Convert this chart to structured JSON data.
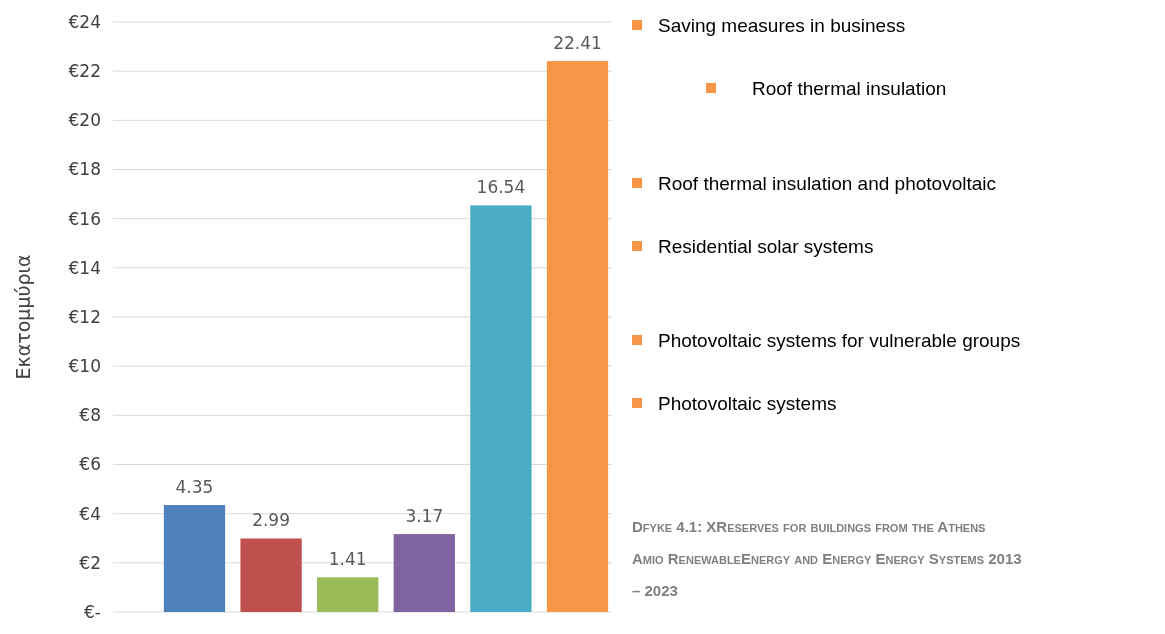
{
  "chart_data": {
    "type": "bar",
    "ylabel": "Εκατομμύρια",
    "categories": [
      null,
      null,
      null,
      null,
      null,
      null
    ],
    "values": [
      4.35,
      2.99,
      1.41,
      3.17,
      16.54,
      22.41
    ],
    "colors": [
      "#4f81bd",
      "#c0504d",
      "#9bbb59",
      "#8064a2",
      "#4bacc6",
      "#f79646"
    ],
    "ylim": [
      0,
      24
    ],
    "yticks": [
      {
        "value": 0,
        "label": "€-"
      },
      {
        "value": 2,
        "label": "€2"
      },
      {
        "value": 4,
        "label": "€4"
      },
      {
        "value": 6,
        "label": "€6"
      },
      {
        "value": 8,
        "label": "€8"
      },
      {
        "value": 10,
        "label": "€10"
      },
      {
        "value": 12,
        "label": "€12"
      },
      {
        "value": 14,
        "label": "€14"
      },
      {
        "value": 16,
        "label": "€16"
      },
      {
        "value": 18,
        "label": "€18"
      },
      {
        "value": 20,
        "label": "€20"
      },
      {
        "value": 22,
        "label": "€22"
      },
      {
        "value": 24,
        "label": "€24"
      }
    ],
    "grid": "y",
    "data_labels": true,
    "annotations": [
      "Saving measures in business",
      "Roof thermal insulation",
      "Roof thermal insulation and photovoltaic",
      "Residential solar systems",
      "Photovoltaic systems for vulnerable groups",
      "Photovoltaic systems",
      "Dfyke 4.1: XReserves for buildings from the Athens Amio RenewableEnergy and Energy Energy Systems 2013 – 2023"
    ]
  }
}
